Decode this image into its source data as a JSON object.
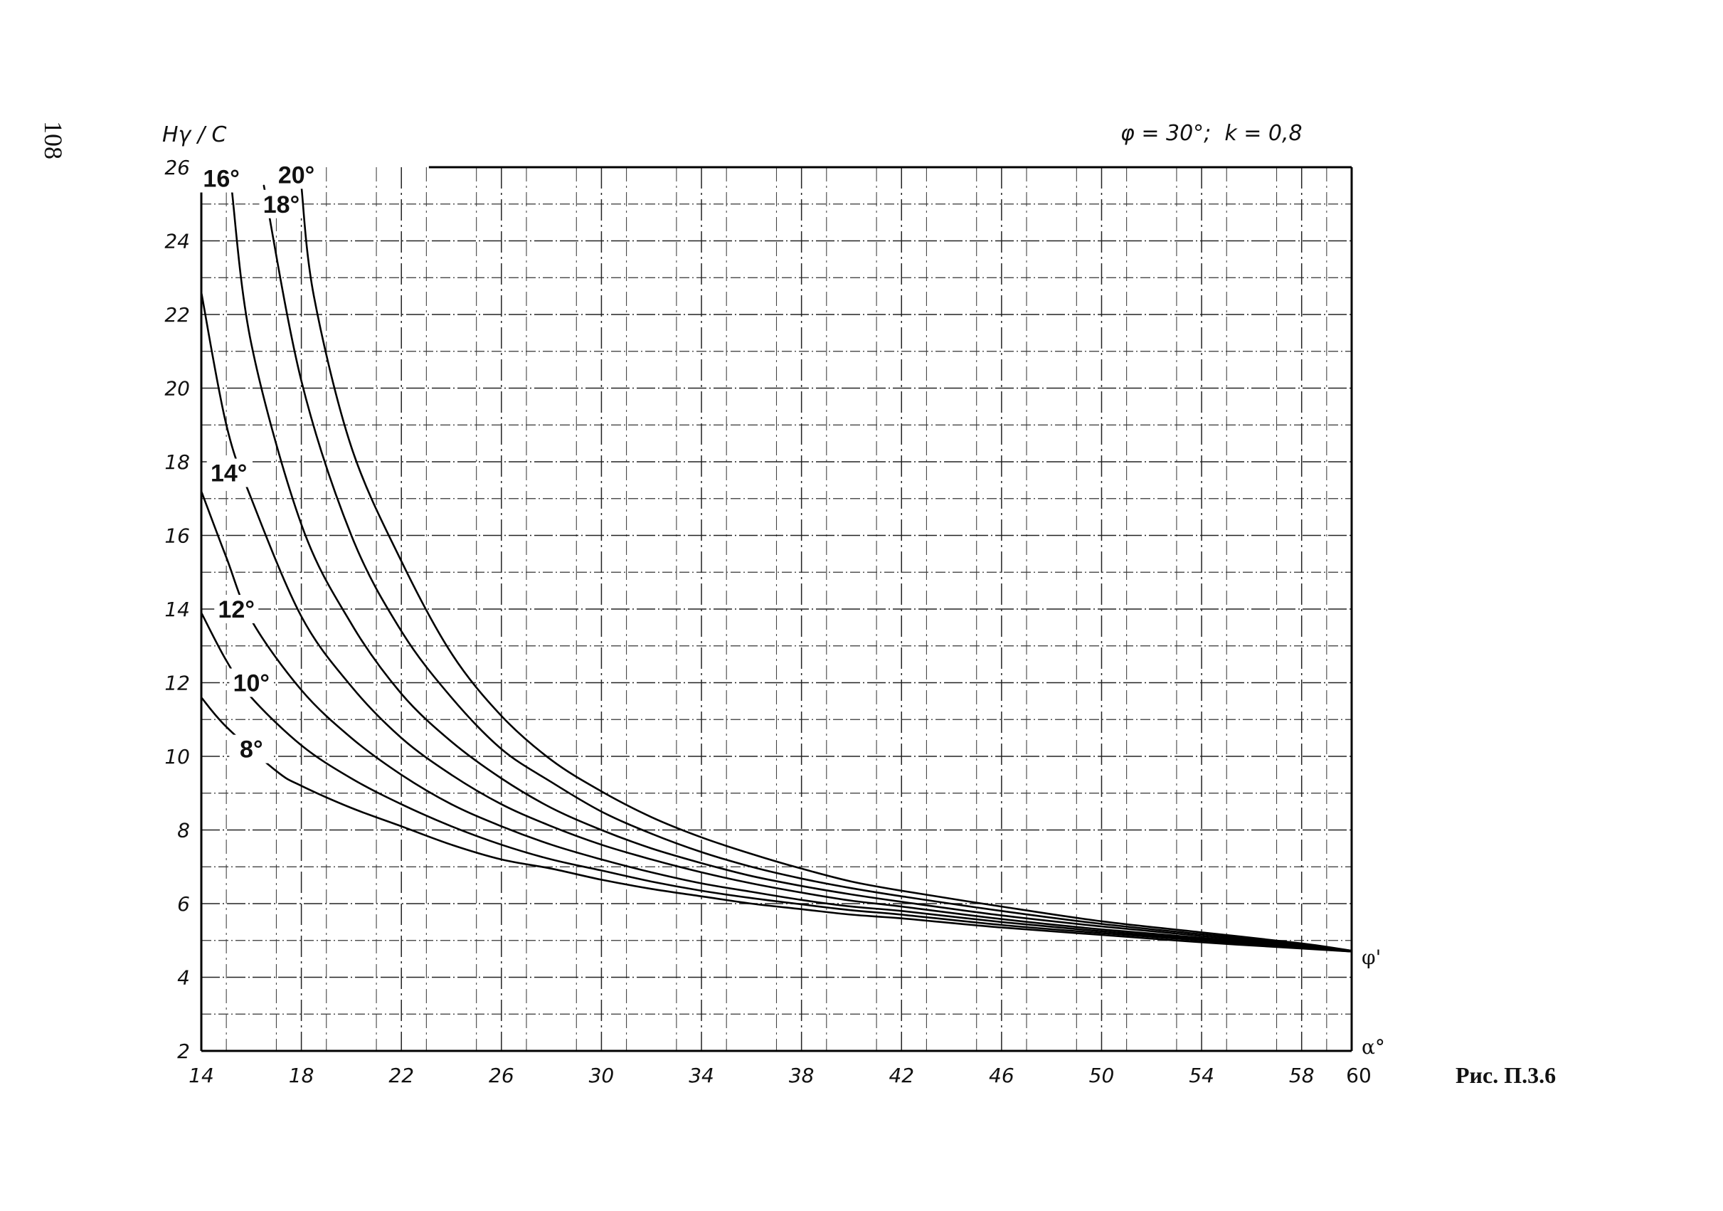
{
  "page_number": "108",
  "figure_caption": "Рис. П.3.6",
  "parameters_text": "φ = 30°;  k = 0,8",
  "chart_data": {
    "type": "line",
    "ylabel": "Hγ / C",
    "xlabel": "α°",
    "curve_end_label": "φ'",
    "xlim": [
      14,
      60
    ],
    "ylim": [
      2,
      26
    ],
    "x_ticks": [
      "14",
      "18",
      "22",
      "26",
      "30",
      "34",
      "38",
      "42",
      "46",
      "50",
      "54",
      "58",
      "60"
    ],
    "y_ticks": [
      "2",
      "4",
      "6",
      "8",
      "10",
      "12",
      "14",
      "16",
      "18",
      "20",
      "22",
      "24",
      "26"
    ],
    "grid": true,
    "series": [
      {
        "name": "8°",
        "points": [
          [
            14,
            11.6
          ],
          [
            15,
            10.8
          ],
          [
            17,
            9.6
          ],
          [
            18,
            9.2
          ],
          [
            20,
            8.6
          ],
          [
            22,
            8.1
          ],
          [
            24,
            7.6
          ],
          [
            26,
            7.2
          ],
          [
            28,
            6.95
          ],
          [
            30,
            6.65
          ],
          [
            32,
            6.4
          ],
          [
            34,
            6.2
          ],
          [
            36,
            6.0
          ],
          [
            38,
            5.85
          ],
          [
            40,
            5.7
          ],
          [
            42,
            5.6
          ],
          [
            46,
            5.35
          ],
          [
            50,
            5.15
          ],
          [
            54,
            4.95
          ],
          [
            58,
            4.78
          ],
          [
            60,
            4.7
          ]
        ]
      },
      {
        "name": "10°",
        "points": [
          [
            14,
            13.9
          ],
          [
            15,
            12.6
          ],
          [
            16,
            11.6
          ],
          [
            18,
            10.3
          ],
          [
            20,
            9.4
          ],
          [
            22,
            8.7
          ],
          [
            24,
            8.1
          ],
          [
            26,
            7.6
          ],
          [
            28,
            7.2
          ],
          [
            30,
            6.9
          ],
          [
            32,
            6.6
          ],
          [
            34,
            6.35
          ],
          [
            36,
            6.15
          ],
          [
            38,
            5.98
          ],
          [
            40,
            5.82
          ],
          [
            42,
            5.7
          ],
          [
            46,
            5.42
          ],
          [
            50,
            5.2
          ],
          [
            54,
            5.0
          ],
          [
            58,
            4.8
          ],
          [
            60,
            4.7
          ]
        ]
      },
      {
        "name": "12°",
        "points": [
          [
            14,
            17.2
          ],
          [
            15,
            15.4
          ],
          [
            16,
            13.7
          ],
          [
            18,
            11.8
          ],
          [
            20,
            10.5
          ],
          [
            22,
            9.5
          ],
          [
            24,
            8.7
          ],
          [
            26,
            8.1
          ],
          [
            28,
            7.6
          ],
          [
            30,
            7.2
          ],
          [
            32,
            6.85
          ],
          [
            34,
            6.55
          ],
          [
            36,
            6.32
          ],
          [
            38,
            6.1
          ],
          [
            40,
            5.92
          ],
          [
            42,
            5.8
          ],
          [
            46,
            5.5
          ],
          [
            50,
            5.25
          ],
          [
            54,
            5.03
          ],
          [
            58,
            4.82
          ],
          [
            60,
            4.7
          ]
        ]
      },
      {
        "name": "14°",
        "points": [
          [
            14,
            22.6
          ],
          [
            15,
            19.0
          ],
          [
            16,
            17.0
          ],
          [
            18,
            13.8
          ],
          [
            20,
            11.9
          ],
          [
            22,
            10.5
          ],
          [
            24,
            9.5
          ],
          [
            26,
            8.7
          ],
          [
            28,
            8.1
          ],
          [
            30,
            7.6
          ],
          [
            32,
            7.2
          ],
          [
            34,
            6.85
          ],
          [
            36,
            6.55
          ],
          [
            38,
            6.3
          ],
          [
            40,
            6.08
          ],
          [
            42,
            5.92
          ],
          [
            46,
            5.58
          ],
          [
            50,
            5.3
          ],
          [
            54,
            5.07
          ],
          [
            58,
            4.85
          ],
          [
            60,
            4.72
          ]
        ]
      },
      {
        "name": "16°",
        "points": [
          [
            15.2,
            25.5
          ],
          [
            16,
            21.2
          ],
          [
            18,
            16.3
          ],
          [
            20,
            13.6
          ],
          [
            22,
            11.7
          ],
          [
            24,
            10.4
          ],
          [
            26,
            9.4
          ],
          [
            28,
            8.6
          ],
          [
            30,
            8.0
          ],
          [
            32,
            7.5
          ],
          [
            34,
            7.1
          ],
          [
            36,
            6.75
          ],
          [
            38,
            6.48
          ],
          [
            40,
            6.25
          ],
          [
            42,
            6.05
          ],
          [
            46,
            5.68
          ],
          [
            50,
            5.38
          ],
          [
            54,
            5.12
          ],
          [
            58,
            4.88
          ],
          [
            60,
            4.72
          ]
        ]
      },
      {
        "name": "18°",
        "points": [
          [
            16.5,
            25.5
          ],
          [
            18,
            20.2
          ],
          [
            20,
            16.0
          ],
          [
            22,
            13.4
          ],
          [
            24,
            11.6
          ],
          [
            26,
            10.2
          ],
          [
            28,
            9.3
          ],
          [
            30,
            8.5
          ],
          [
            32,
            7.9
          ],
          [
            34,
            7.4
          ],
          [
            36,
            7.0
          ],
          [
            38,
            6.68
          ],
          [
            40,
            6.42
          ],
          [
            42,
            6.2
          ],
          [
            46,
            5.8
          ],
          [
            50,
            5.45
          ],
          [
            54,
            5.17
          ],
          [
            58,
            4.9
          ],
          [
            60,
            4.72
          ]
        ]
      },
      {
        "name": "20°",
        "points": [
          [
            18,
            25.5
          ],
          [
            18.5,
            22.5
          ],
          [
            20,
            18.4
          ],
          [
            22,
            15.3
          ],
          [
            24,
            12.8
          ],
          [
            26,
            11.1
          ],
          [
            28,
            9.9
          ],
          [
            30,
            9.05
          ],
          [
            32,
            8.35
          ],
          [
            34,
            7.8
          ],
          [
            36,
            7.35
          ],
          [
            38,
            6.95
          ],
          [
            40,
            6.6
          ],
          [
            42,
            6.35
          ],
          [
            46,
            5.92
          ],
          [
            50,
            5.52
          ],
          [
            54,
            5.22
          ],
          [
            58,
            4.92
          ],
          [
            60,
            4.72
          ]
        ]
      }
    ]
  }
}
